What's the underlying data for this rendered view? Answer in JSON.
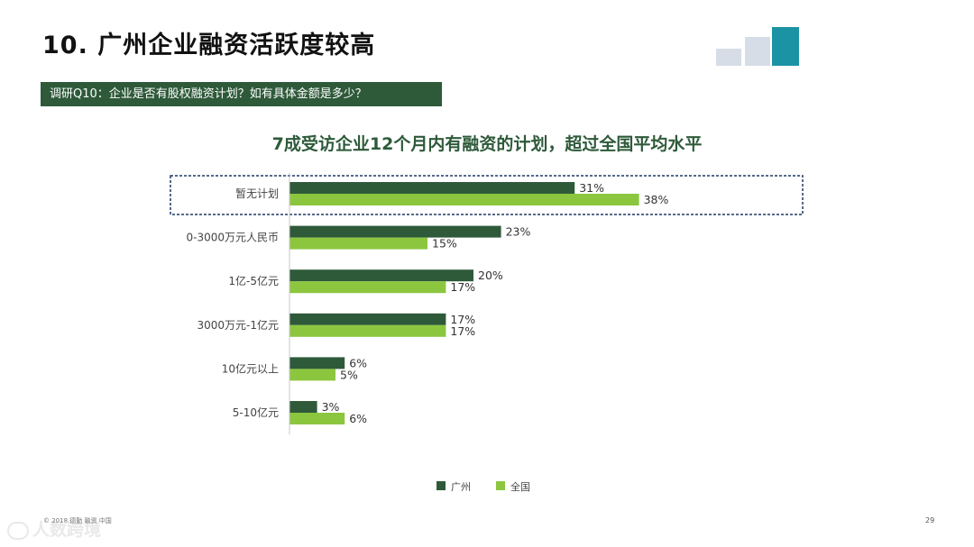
{
  "header": {
    "title": "10. 广州企业融资活跃度较高",
    "question": "调研Q10：企业是否有股权融资计划？如有具体金额是多少？"
  },
  "colors": {
    "guangzhou": "#2e5a3a",
    "national": "#8cc63f",
    "question_bar": "#2e5a3a",
    "highlight_border": "#1f3864"
  },
  "chart_data": {
    "type": "bar",
    "orientation": "horizontal",
    "title": "7成受访企业12个月内有融资的计划，超过全国平均水平",
    "categories": [
      "暂无计划",
      "0-3000万元人民币",
      "1亿-5亿元",
      "3000万元-1亿元",
      "10亿元以上",
      "5-10亿元"
    ],
    "series": [
      {
        "name": "广州",
        "values": [
          31,
          23,
          20,
          17,
          6,
          3
        ]
      },
      {
        "name": "全国",
        "values": [
          38,
          15,
          17,
          17,
          5,
          6
        ]
      }
    ],
    "value_unit": "%",
    "xlim": [
      0,
      100
    ],
    "grid": false,
    "legend_position": "bottom-center",
    "highlighted_category": "暂无计划"
  },
  "footer": {
    "note": "© 2018 德勤 融资 中国",
    "page_number": "29",
    "watermark": "人数跨境"
  }
}
